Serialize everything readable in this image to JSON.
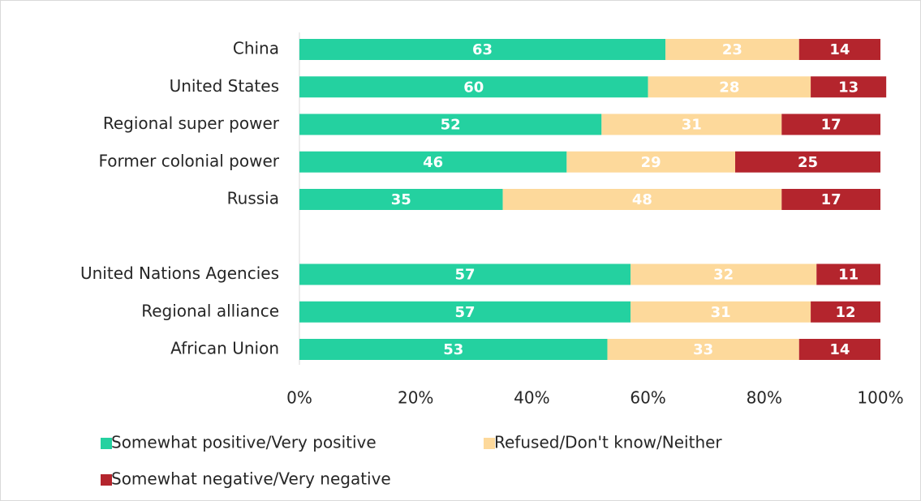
{
  "chart_data": {
    "type": "stacked_bar_horizontal",
    "categories": [
      "China",
      "United States",
      "Regional super power",
      "Former colonial power",
      "Russia",
      null,
      "United Nations Agencies",
      "Regional alliance",
      "African Union"
    ],
    "series": [
      {
        "name": "Somewhat positive/Very positive",
        "color": "#24d1a0",
        "values": [
          63,
          60,
          52,
          46,
          35,
          null,
          57,
          57,
          53
        ]
      },
      {
        "name": "Refused/Don't know/Neither",
        "color": "#fdd99b",
        "values": [
          23,
          28,
          31,
          29,
          48,
          null,
          32,
          31,
          33
        ]
      },
      {
        "name": "Somewhat negative/Very negative",
        "color": "#b4252d",
        "values": [
          14,
          13,
          17,
          25,
          17,
          null,
          11,
          12,
          14
        ]
      }
    ],
    "xlim": [
      0,
      100
    ],
    "xticks": [
      {
        "value": 0,
        "label": "0%"
      },
      {
        "value": 20,
        "label": "20%"
      },
      {
        "value": 40,
        "label": "40%"
      },
      {
        "value": 60,
        "label": "60%"
      },
      {
        "value": 80,
        "label": "80%"
      },
      {
        "value": 100,
        "label": "100%"
      }
    ],
    "grid": false,
    "legend": "bottom"
  }
}
